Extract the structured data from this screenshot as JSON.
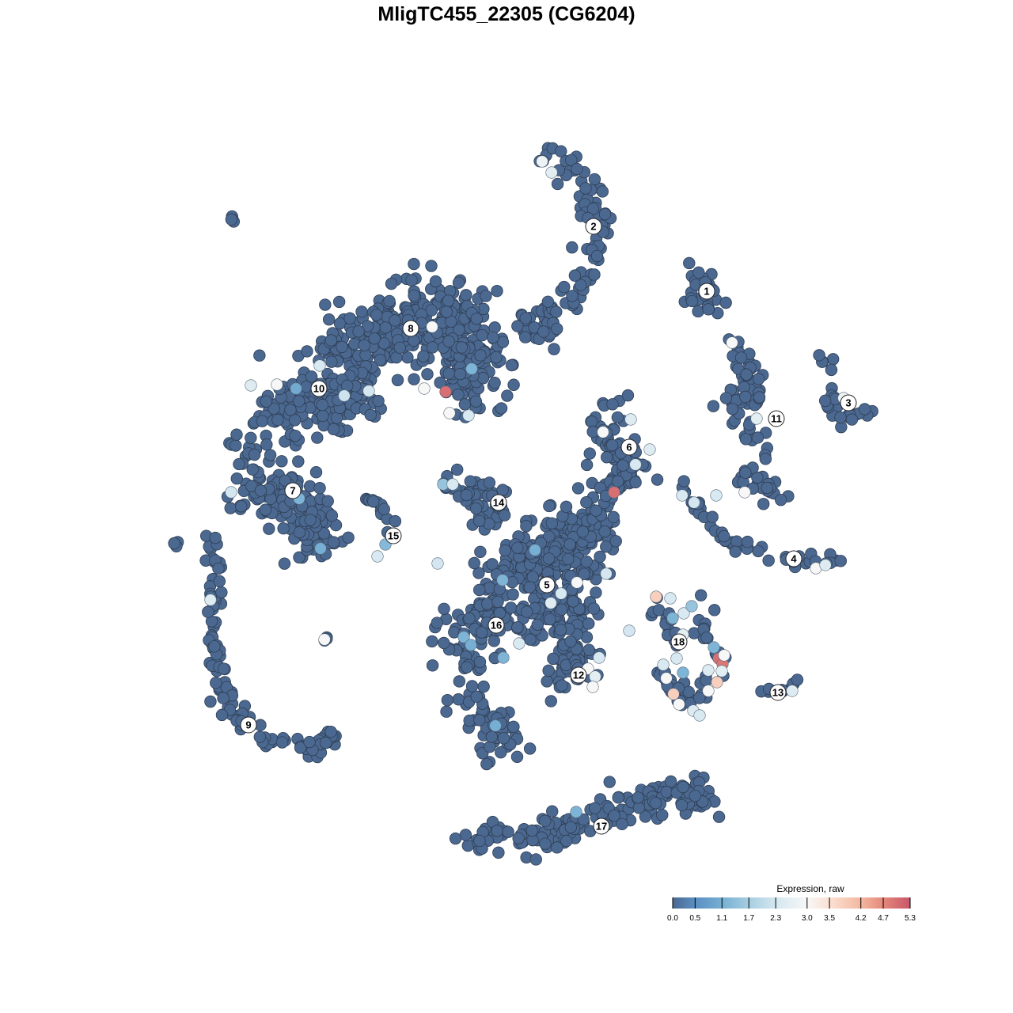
{
  "chart_data": {
    "type": "scatter",
    "title": "MligTC455_22305 (CG6204)",
    "xlabel": "",
    "ylabel": "",
    "axes_visible": false,
    "grid": false,
    "base_color": "#4b6890",
    "point_outline": "#2f3f55",
    "legend": {
      "title": "Expression, raw",
      "placement": "bottom-right",
      "ticks": [
        0.0,
        0.5,
        1.1,
        1.7,
        2.3,
        3.0,
        3.5,
        4.2,
        4.7,
        5.3
      ],
      "tick_labels": [
        "0.0",
        "0.5",
        "1.1",
        "1.7",
        "2.3",
        "3.0",
        "3.5",
        "4.2",
        "4.7",
        "5.3"
      ],
      "range": [
        0,
        5.3
      ],
      "colors": [
        "#4a6890",
        "#5b8fc2",
        "#76afd3",
        "#a7cee1",
        "#d4e7f0",
        "#f7f7f7",
        "#fbe0d3",
        "#f3b89f",
        "#e4887b",
        "#c9566a"
      ]
    },
    "clusters": [
      {
        "id": "1",
        "label_at": [
          25.3,
          27.2
        ],
        "path": [
          [
            24,
            29
          ],
          [
            25,
            26
          ],
          [
            26,
            28
          ]
        ],
        "spread": 2.2,
        "n": 32
      },
      {
        "id": "2",
        "label_at": [
          11,
          35.4
        ],
        "path": [
          [
            4.5,
            44.5
          ],
          [
            10,
            41
          ],
          [
            12,
            35
          ],
          [
            10,
            30
          ],
          [
            7,
            26
          ],
          [
            5,
            23
          ],
          [
            2,
            22.5
          ]
        ],
        "spread": 2.0,
        "n": 115
      },
      {
        "id": "3",
        "label_at": [
          43.2,
          13.1
        ],
        "path": [
          [
            39,
            19
          ],
          [
            41,
            17
          ],
          [
            41,
            11
          ],
          [
            46,
            12
          ]
        ],
        "spread": 0.9,
        "n": 26
      },
      {
        "id": "4",
        "label_at": [
          36.3,
          -6.6
        ],
        "path": [
          [
            22,
            3
          ],
          [
            26,
            -3
          ],
          [
            30,
            -5
          ],
          [
            36,
            -7
          ],
          [
            42,
            -7
          ]
        ],
        "spread": 0.8,
        "n": 48
      },
      {
        "id": "5",
        "label_at": [
          5.1,
          -9.9
        ],
        "path": [
          [
            0,
            -8
          ],
          [
            5,
            -8
          ],
          [
            6,
            -5
          ],
          [
            11,
            -2
          ],
          [
            8,
            -14
          ],
          [
            3,
            -13
          ]
        ],
        "spread": 3.6,
        "n": 360
      },
      {
        "id": "6",
        "label_at": [
          15.5,
          7.5
        ],
        "path": [
          [
            13,
            11
          ],
          [
            14,
            7
          ],
          [
            16,
            5
          ],
          [
            12,
            0
          ]
        ],
        "spread": 2.6,
        "n": 95
      },
      {
        "id": "7",
        "label_at": [
          -27,
          2
        ],
        "path": [
          [
            -33,
            5
          ],
          [
            -30,
            0
          ],
          [
            -27,
            3
          ],
          [
            -25,
            -2
          ],
          [
            -24,
            -5
          ]
        ],
        "spread": 3.0,
        "n": 150
      },
      {
        "id": "8",
        "label_at": [
          -12.1,
          22.5
        ],
        "path": [
          [
            -22,
            18
          ],
          [
            -15,
            22
          ],
          [
            -8,
            25
          ],
          [
            -5,
            20
          ],
          [
            -4,
            15
          ]
        ],
        "spread": 4.2,
        "n": 440
      },
      {
        "id": "9",
        "label_at": [
          -32.6,
          -27.6
        ],
        "path": [
          [
            -37,
            -3
          ],
          [
            -37,
            -12
          ],
          [
            -37,
            -20
          ],
          [
            -35,
            -26
          ],
          [
            -30,
            -29
          ],
          [
            -25,
            -31
          ],
          [
            -22,
            -29
          ]
        ],
        "spread": 1.1,
        "n": 120
      },
      {
        "id": "10",
        "label_at": [
          -23.7,
          14.9
        ],
        "path": [
          [
            -30,
            12
          ],
          [
            -24,
            13
          ],
          [
            -18,
            14
          ],
          [
            -32,
            8
          ]
        ],
        "spread": 3.4,
        "n": 160
      },
      {
        "id": "11",
        "label_at": [
          34.1,
          11.1
        ],
        "path": [
          [
            28.5,
            20.5
          ],
          [
            30.5,
            17
          ],
          [
            32,
            14
          ],
          [
            26.5,
            13
          ],
          [
            32.5,
            8
          ],
          [
            30,
            4
          ],
          [
            35,
            1
          ]
        ],
        "spread": 1.4,
        "n": 95
      },
      {
        "id": "12",
        "label_at": [
          9.1,
          -21.3
        ],
        "path": [
          [
            7,
            -22
          ],
          [
            8,
            -18
          ],
          [
            10,
            -20
          ]
        ],
        "spread": 2.2,
        "n": 60
      },
      {
        "id": "13",
        "label_at": [
          34.3,
          -23.5
        ],
        "path": [
          [
            32,
            -24
          ],
          [
            37,
            -22
          ]
        ],
        "spread": 0.7,
        "n": 10
      },
      {
        "id": "14",
        "label_at": [
          -1,
          0.5
        ],
        "path": [
          [
            -8,
            2.5
          ],
          [
            -4,
            2
          ],
          [
            -1,
            0
          ],
          [
            -3,
            -2
          ]
        ],
        "spread": 1.8,
        "n": 55
      },
      {
        "id": "15",
        "label_at": [
          -14.3,
          -3.7
        ],
        "path": [
          [
            -18,
            1.5
          ],
          [
            -15,
            -1
          ],
          [
            -14.5,
            -4
          ],
          [
            -16.5,
            -6.5
          ]
        ],
        "spread": 0.7,
        "n": 14
      },
      {
        "id": "16",
        "label_at": [
          -1.3,
          -15
        ],
        "path": [
          [
            -8,
            -17
          ],
          [
            -4,
            -15
          ],
          [
            -2,
            -12
          ],
          [
            -6,
            -25
          ],
          [
            -2,
            -27
          ],
          [
            0.5,
            -31
          ]
        ],
        "spread": 2.6,
        "n": 135
      },
      {
        "id": "17",
        "label_at": [
          12,
          -40.4
        ],
        "path": [
          [
            -6,
            -42
          ],
          [
            4,
            -42
          ],
          [
            12,
            -39
          ],
          [
            21,
            -36
          ],
          [
            25,
            -37
          ]
        ],
        "spread": 2.0,
        "n": 185
      },
      {
        "id": "18",
        "label_at": [
          21.8,
          -17.1
        ],
        "path": [
          [
            19,
            -12
          ],
          [
            21,
            -16
          ],
          [
            20,
            -22
          ],
          [
            23,
            -25
          ],
          [
            27,
            -20
          ],
          [
            24,
            -12
          ]
        ],
        "spread": 1.4,
        "n": 60
      },
      {
        "id": "",
        "label_at": null,
        "path": [
          [
            -35,
            36.5
          ],
          [
            -34.5,
            36
          ]
        ],
        "spread": 0.4,
        "n": 4
      },
      {
        "id": "",
        "label_at": null,
        "path": [
          [
            -42,
            -5
          ],
          [
            -41.5,
            -4.5
          ]
        ],
        "spread": 0.4,
        "n": 4
      },
      {
        "id": "",
        "label_at": null,
        "path": [
          [
            -23,
            -16.8
          ],
          [
            -22.5,
            -16.5
          ]
        ],
        "spread": 0.4,
        "n": 3
      }
    ],
    "expressing_points": [
      [
        4.5,
        43.6,
        2.8
      ],
      [
        5.7,
        42.2,
        2.6
      ],
      [
        -9.4,
        22.7,
        3.0
      ],
      [
        -7.7,
        14.5,
        5.0
      ],
      [
        -4.4,
        17.4,
        1.2
      ],
      [
        -23.6,
        17.8,
        2.4
      ],
      [
        -29,
        15.4,
        3.0
      ],
      [
        -32.3,
        15.3,
        2.5
      ],
      [
        -26.6,
        14.9,
        1.0
      ],
      [
        -20.5,
        14,
        2.2
      ],
      [
        -17.4,
        14.6,
        2.3
      ],
      [
        -10.4,
        14.9,
        3.0
      ],
      [
        -7.2,
        11.8,
        3.0
      ],
      [
        -4.8,
        11.5,
        2.4
      ],
      [
        -34.8,
        1.8,
        2.3
      ],
      [
        -26.2,
        1,
        1.2
      ],
      [
        -23.5,
        -5.3,
        1.1
      ],
      [
        -37.4,
        -11.8,
        2.5
      ],
      [
        -23,
        -16.8,
        3.0
      ],
      [
        -15.3,
        -4.8,
        1.3
      ],
      [
        -16.3,
        -6.3,
        2.4
      ],
      [
        -8.7,
        -7.2,
        2.3
      ],
      [
        -8,
        2.8,
        1.5
      ],
      [
        -6.8,
        2.8,
        2.4
      ],
      [
        3.6,
        -5.5,
        1.1
      ],
      [
        -0.5,
        -9.3,
        1.2
      ],
      [
        6.9,
        -11,
        2.4
      ],
      [
        5.6,
        -12.2,
        2.5
      ],
      [
        8.9,
        -9.6,
        3.0
      ],
      [
        12.6,
        -8.5,
        2.3
      ],
      [
        -5.4,
        -16.5,
        1.2
      ],
      [
        -4.5,
        -17.5,
        1.1
      ],
      [
        1.6,
        -17.3,
        2.4
      ],
      [
        -0.4,
        -19.1,
        1.2
      ],
      [
        -1.4,
        -27.7,
        1.1
      ],
      [
        11.7,
        -19.1,
        2.4
      ],
      [
        10.3,
        -20.5,
        3.0
      ],
      [
        11.2,
        -21.5,
        2.6
      ],
      [
        10.9,
        -22.8,
        3.0
      ],
      [
        15.5,
        -15.7,
        2.3
      ],
      [
        8.8,
        -38.6,
        1.2
      ],
      [
        13.6,
        1.8,
        5.0
      ],
      [
        15.7,
        11,
        2.5
      ],
      [
        12.2,
        9.4,
        3.0
      ],
      [
        18.1,
        7.2,
        2.5
      ],
      [
        16.3,
        5.3,
        2.4
      ],
      [
        22.2,
        1.4,
        2.4
      ],
      [
        23.7,
        0.5,
        2.3
      ],
      [
        26.5,
        1.4,
        2.4
      ],
      [
        30.1,
        1.8,
        3.0
      ],
      [
        28.5,
        20.7,
        3.0
      ],
      [
        31.6,
        11.1,
        2.6
      ],
      [
        42.6,
        13.7,
        2.8
      ],
      [
        39.1,
        -7.8,
        3.0
      ],
      [
        40.3,
        -7.4,
        2.5
      ],
      [
        36.1,
        -23.3,
        2.5
      ],
      [
        18.9,
        -11.4,
        3.8
      ],
      [
        20.7,
        -11.6,
        2.4
      ],
      [
        22.4,
        -13.5,
        2.4
      ],
      [
        23.4,
        -12.6,
        1.5
      ],
      [
        21,
        -14.1,
        1.2
      ],
      [
        22.3,
        -16.2,
        2.6
      ],
      [
        21.5,
        -19.2,
        2.4
      ],
      [
        19.8,
        -20,
        2.4
      ],
      [
        22.3,
        -21,
        1.2
      ],
      [
        26.2,
        -17.8,
        1.2
      ],
      [
        26.8,
        -19.2,
        5.0
      ],
      [
        27.3,
        -19.9,
        4.9
      ],
      [
        27.5,
        -18.8,
        3.0
      ],
      [
        25.5,
        -20.7,
        2.5
      ],
      [
        27.2,
        -20.8,
        2.6
      ],
      [
        26.6,
        -22.2,
        3.8
      ],
      [
        25.5,
        -23.3,
        3.0
      ],
      [
        21.1,
        -23.7,
        3.8
      ],
      [
        21.8,
        -25,
        3.0
      ],
      [
        23.6,
        -25.8,
        2.5
      ],
      [
        24.4,
        -26.4,
        2.4
      ],
      [
        20.2,
        -21.7,
        3.0
      ]
    ]
  }
}
